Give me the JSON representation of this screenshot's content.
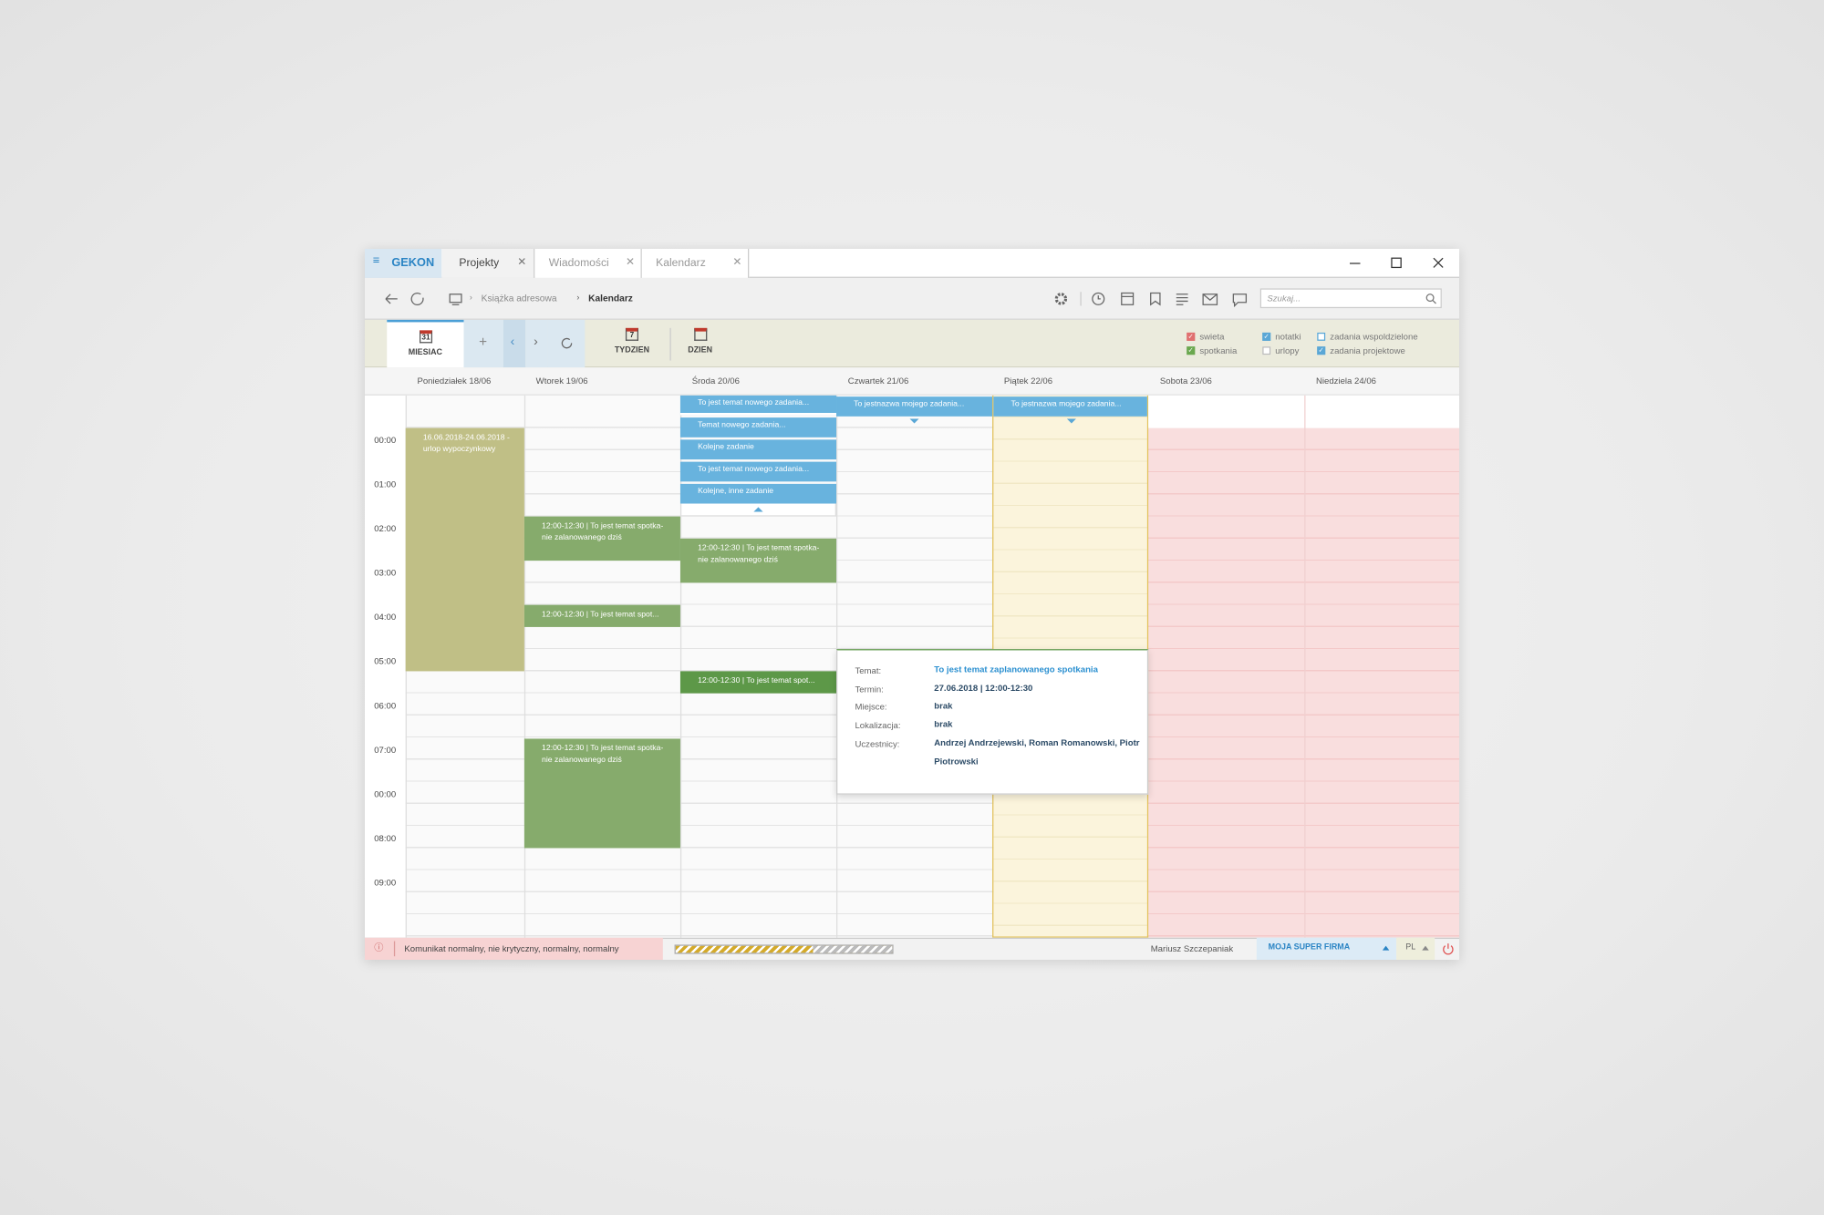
{
  "tabs": {
    "brand": "GEKON",
    "items": [
      "Projekty",
      "Wiadomości",
      "Kalendarz"
    ]
  },
  "toolbar": {
    "breadcrumb": [
      "Książka adresowa",
      "Kalendarz"
    ],
    "search_placeholder": "Szukaj..."
  },
  "ribbon": {
    "views": [
      {
        "label": "MIESIAC",
        "icon": "31"
      },
      {
        "label": "TYDZIEN",
        "icon": "7"
      },
      {
        "label": "DZIEN",
        "icon": ""
      }
    ]
  },
  "legend": [
    {
      "label": "swieta",
      "checked": true,
      "color": "#e07070"
    },
    {
      "label": "spotkania",
      "checked": true,
      "color": "#6aa84f"
    },
    {
      "label": "notatki",
      "checked": true,
      "color": "#5aa7d6"
    },
    {
      "label": "urlopy",
      "checked": false,
      "color": "#bbbbbb"
    },
    {
      "label": "zadania wspoldzielone",
      "checked": false,
      "color": "#5aa7d6"
    },
    {
      "label": "zadania projektowe",
      "checked": true,
      "color": "#5aa7d6"
    }
  ],
  "days": [
    "Poniedziałek 18/06",
    "Wtorek 19/06",
    "Środa 20/06",
    "Czwartek 21/06",
    "Piątek 22/06",
    "Sobota 23/06",
    "Niedziela 24/06"
  ],
  "times": [
    "00:00",
    "01:00",
    "02:00",
    "03:00",
    "04:00",
    "05:00",
    "06:00",
    "07:00",
    "00:00",
    "08:00",
    "09:00"
  ],
  "events": [
    {
      "text": "16.06.2018-24.06.2018 - urlop wypoczynkowy"
    },
    {
      "text": "12:00-12:30  |  To jest temat spotka-nie zalanowanego dziś"
    },
    {
      "text": "12:00-12:30  |  To jest temat spot..."
    },
    {
      "text": "12:00-12:30  |  To jest temat spotka-nie zalanowanego dziś"
    },
    {
      "text": "To jest temat nowego zadania..."
    },
    {
      "text": "Temat nowego zadania..."
    },
    {
      "text": "Kolejne zadanie"
    },
    {
      "text": "To jest temat nowego zadania..."
    },
    {
      "text": "Kolejne, inne zadanie"
    },
    {
      "text": "12:00-12:30  |  To jest temat spotka-nie zalanowanego dziś"
    },
    {
      "text": "12:00-12:30  |  To jest temat spot..."
    },
    {
      "text": "To jestnazwa mojego zadania..."
    },
    {
      "text": "To jestnazwa mojego zadania..."
    }
  ],
  "tooltip": {
    "fields": [
      {
        "label": "Temat:",
        "value": "To jest temat zaplanowanego spotkania"
      },
      {
        "label": "Termin:",
        "value": "27.06.2018 | 12:00-12:30"
      },
      {
        "label": "Miejsce:",
        "value": "brak"
      },
      {
        "label": "Lokalizacja:",
        "value": "brak"
      },
      {
        "label": "Uczestnicy:",
        "value": "Andrzej Andrzejewski, Roman Romanowski, Piotr Piotrowski"
      }
    ]
  },
  "status": {
    "message": "Komunikat normalny, nie krytyczny, normalny, normalny",
    "user": "Mariusz Szczepaniak",
    "company": "MOJA SUPER FIRMA",
    "language": "PL"
  }
}
